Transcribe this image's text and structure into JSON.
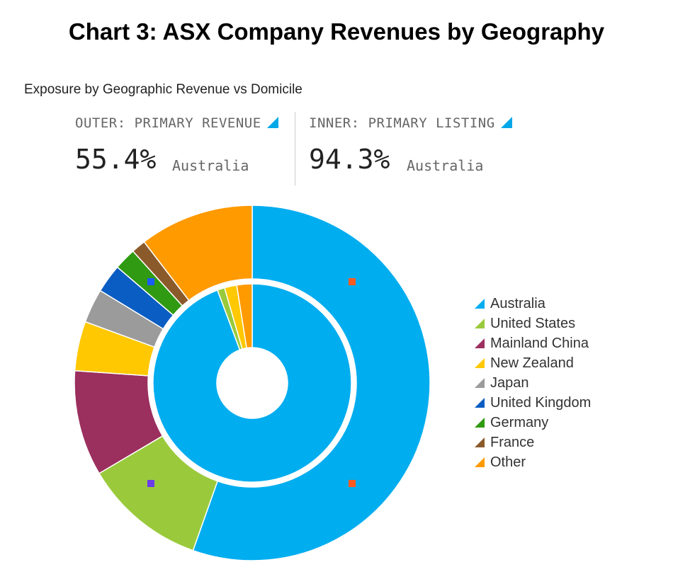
{
  "title": "Chart 3: ASX Company Revenues by Geography",
  "subtitle": "Exposure by Geographic Revenue vs Domicile",
  "outer_kpi": {
    "label": "OUTER: PRIMARY REVENUE",
    "value": "55.4%",
    "country": "Australia"
  },
  "inner_kpi": {
    "label": "INNER: PRIMARY LISTING",
    "value": "94.3%",
    "country": "Australia"
  },
  "chart_data": {
    "type": "pie",
    "variant": "nested-donut",
    "categories": [
      "Australia",
      "United States",
      "Mainland China",
      "New Zealand",
      "Japan",
      "United Kingdom",
      "Germany",
      "France",
      "Other"
    ],
    "colors": [
      "#00ADEF",
      "#9ACA3C",
      "#9B2F5E",
      "#FFC800",
      "#9B9B9B",
      "#0A5DC2",
      "#2F9A12",
      "#8B5A2B",
      "#FF9A00"
    ],
    "series": [
      {
        "name": "OUTER: PRIMARY REVENUE",
        "values": [
          55.4,
          11.1,
          9.6,
          4.5,
          3.1,
          2.6,
          2.0,
          1.3,
          10.4
        ]
      },
      {
        "name": "INNER: PRIMARY LISTING",
        "values": [
          94.3,
          1.2,
          0,
          2.0,
          0,
          0,
          0,
          0,
          2.5
        ]
      }
    ],
    "legend_position": "right"
  }
}
